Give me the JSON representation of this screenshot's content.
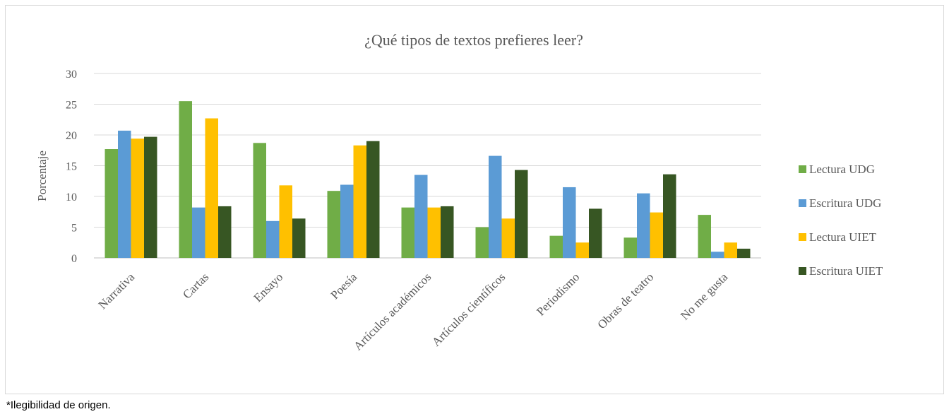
{
  "chart_data": {
    "type": "bar",
    "title": "¿Qué tipos de textos prefieres leer?",
    "xlabel": "",
    "ylabel": "Porcentaje",
    "ylim": [
      0,
      30
    ],
    "yticks": [
      0,
      5,
      10,
      15,
      20,
      25,
      30
    ],
    "ytick_labels": [
      "0",
      "5",
      "10",
      "15",
      "20",
      "25",
      "30"
    ],
    "categories": [
      "Narrativa",
      "Cartas",
      "Ensayo",
      "Poesía",
      "Artículos académicos",
      "Artículos científicos",
      "Periodismo",
      "Obras de teatro",
      "No me gusta"
    ],
    "series": [
      {
        "name": "Lectura UDG",
        "color": "#70ad47",
        "values": [
          17.7,
          25.5,
          18.7,
          10.9,
          8.2,
          5.0,
          3.6,
          3.3,
          7.0
        ]
      },
      {
        "name": "Escritura UDG",
        "color": "#5b9bd5",
        "values": [
          20.7,
          8.2,
          6.0,
          11.9,
          13.5,
          16.6,
          11.5,
          10.5,
          1.0
        ]
      },
      {
        "name": "Lectura UIET",
        "color": "#ffc000",
        "values": [
          19.4,
          22.7,
          11.8,
          18.3,
          8.2,
          6.4,
          2.5,
          7.4,
          2.5
        ]
      },
      {
        "name": "Escritura UIET",
        "color": "#375623",
        "values": [
          19.7,
          8.4,
          6.4,
          19.0,
          8.4,
          14.3,
          8.0,
          13.6,
          1.5
        ]
      }
    ],
    "grid": true,
    "legend_position": "right"
  },
  "footnote": "*Ilegibilidad de origen."
}
